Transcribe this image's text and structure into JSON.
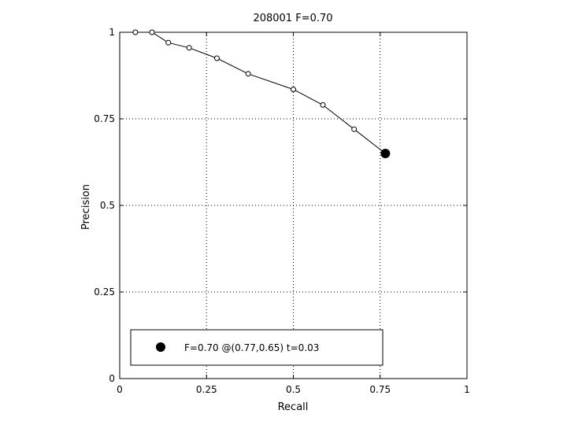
{
  "chart_data": {
    "type": "line",
    "title": "208001 F=0.70",
    "xlabel": "Recall",
    "ylabel": "Precision",
    "xlim": [
      0,
      1
    ],
    "ylim": [
      0,
      1
    ],
    "grid": true,
    "xticks": [
      {
        "value": 0,
        "label": "0"
      },
      {
        "value": 0.25,
        "label": "0.25"
      },
      {
        "value": 0.5,
        "label": "0.5"
      },
      {
        "value": 0.75,
        "label": "0.75"
      },
      {
        "value": 1,
        "label": "1"
      }
    ],
    "yticks": [
      {
        "value": 0,
        "label": "0"
      },
      {
        "value": 0.25,
        "label": "0.25"
      },
      {
        "value": 0.5,
        "label": "0.5"
      },
      {
        "value": 0.75,
        "label": "0.75"
      },
      {
        "value": 1,
        "label": "1"
      }
    ],
    "series": [
      {
        "marker": "open-circle",
        "color": "#000000",
        "x": [
          0.045,
          0.093,
          0.14,
          0.2,
          0.28,
          0.37,
          0.5,
          0.585,
          0.675,
          0.765
        ],
        "y": [
          1.0,
          1.0,
          0.97,
          0.955,
          0.925,
          0.88,
          0.835,
          0.79,
          0.72,
          0.65
        ]
      }
    ],
    "best_point": {
      "x": 0.765,
      "y": 0.65,
      "marker": "filled-circle",
      "color": "#000000"
    },
    "legend": {
      "location": "bottom",
      "entries": [
        {
          "label": "F=0.70 @(0.77,0.65) t=0.03",
          "marker": "filled-circle"
        }
      ]
    }
  }
}
